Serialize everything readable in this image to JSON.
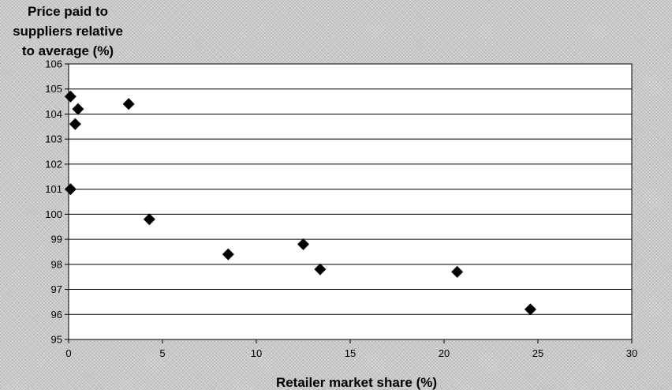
{
  "chart_data": {
    "type": "scatter",
    "title": "",
    "ylabel_lines": [
      "Price paid to",
      "suppliers relative",
      "to average (%)"
    ],
    "xlabel": "Retailer market share (%)",
    "xlim": [
      0,
      30
    ],
    "ylim": [
      95,
      106
    ],
    "xticks": [
      0,
      5,
      10,
      15,
      20,
      25,
      30
    ],
    "yticks": [
      95,
      96,
      97,
      98,
      99,
      100,
      101,
      102,
      103,
      104,
      105,
      106
    ],
    "grid": true,
    "legend": "none",
    "marker": "diamond",
    "marker_color": "#000000",
    "plot_background": "#ffffff",
    "points": [
      {
        "x": 0.1,
        "y": 104.7
      },
      {
        "x": 0.5,
        "y": 104.2
      },
      {
        "x": 0.35,
        "y": 103.6
      },
      {
        "x": 0.1,
        "y": 101.0
      },
      {
        "x": 3.2,
        "y": 104.4
      },
      {
        "x": 4.3,
        "y": 99.8
      },
      {
        "x": 8.5,
        "y": 98.4
      },
      {
        "x": 12.5,
        "y": 98.8
      },
      {
        "x": 13.4,
        "y": 97.8
      },
      {
        "x": 20.7,
        "y": 97.7
      },
      {
        "x": 24.6,
        "y": 96.2
      }
    ]
  }
}
